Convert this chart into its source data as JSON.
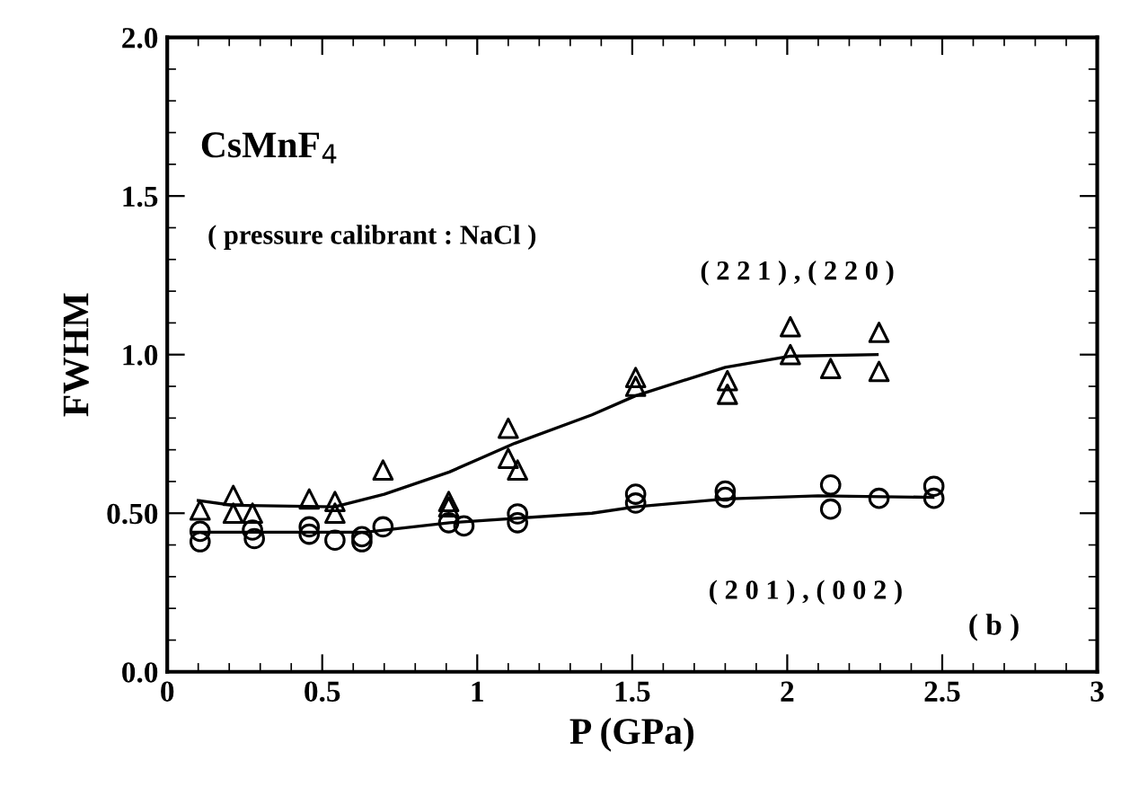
{
  "chart_data": {
    "type": "scatter",
    "xlabel": "P (GPa)",
    "ylabel": "FWHM",
    "annotations": [
      "CsMnF$_{4}$",
      "( pressure calibrant : NaCl )",
      "( b )"
    ],
    "series": [
      {
        "name": "( 2 2 1 ) , ( 2 2 0 )",
        "color": "#000000",
        "marker": "triangle",
        "x": [
          0.106,
          0.213,
          0.213,
          0.275,
          0.458,
          0.541,
          0.541,
          0.696,
          0.908,
          0.908,
          1.1,
          1.1,
          1.13,
          1.511,
          1.511,
          1.807,
          1.807,
          2.01,
          2.01,
          2.14,
          2.296,
          2.296
        ],
        "values": [
          0.51,
          0.556,
          0.5,
          0.5,
          0.545,
          0.537,
          0.5,
          0.636,
          0.537,
          0.52,
          0.768,
          0.673,
          0.636,
          0.928,
          0.9,
          0.918,
          0.875,
          1.088,
          1.0,
          0.956,
          1.07,
          0.947
        ]
      },
      {
        "name": "( 2 0 1 ) , ( 0 0 2 )",
        "color": "#000000",
        "marker": "circle",
        "x": [
          0.106,
          0.106,
          0.275,
          0.281,
          0.458,
          0.458,
          0.541,
          0.628,
          0.628,
          0.696,
          0.908,
          0.957,
          1.13,
          1.13,
          1.511,
          1.511,
          1.8,
          1.8,
          2.14,
          2.14,
          2.296,
          2.473,
          2.473
        ],
        "values": [
          0.443,
          0.41,
          0.447,
          0.42,
          0.457,
          0.434,
          0.415,
          0.426,
          0.41,
          0.457,
          0.47,
          0.46,
          0.498,
          0.47,
          0.56,
          0.532,
          0.57,
          0.55,
          0.589,
          0.513,
          0.547,
          0.585,
          0.547
        ]
      },
      {
        "type": "line",
        "color": "#000000",
        "marker": "none",
        "x": [
          0.1,
          0.21,
          0.54,
          0.7,
          0.91,
          1.12,
          1.37,
          1.51,
          1.8,
          2.01,
          2.29
        ],
        "values": [
          0.54,
          0.525,
          0.52,
          0.56,
          0.63,
          0.72,
          0.81,
          0.87,
          0.96,
          0.995,
          1.0
        ]
      },
      {
        "type": "line",
        "color": "#000000",
        "marker": "none",
        "x": [
          0.08,
          0.64,
          0.91,
          1.37,
          1.51,
          1.8,
          2.1,
          2.47
        ],
        "values": [
          0.44,
          0.44,
          0.47,
          0.5,
          0.52,
          0.545,
          0.555,
          0.55
        ]
      }
    ],
    "xlim": [
      0,
      3
    ],
    "xticks": [
      0,
      0.5,
      1,
      1.5,
      2,
      2.5,
      3
    ],
    "ylim": [
      0,
      2
    ],
    "yticks": [
      {
        "value": 0,
        "label": "0.0"
      },
      {
        "value": 0.5,
        "label": "0.50"
      },
      {
        "value": 1,
        "label": "1.0"
      },
      {
        "value": 1.5,
        "label": "1.5"
      },
      {
        "value": 2,
        "label": "2.0"
      }
    ],
    "grid": false,
    "legend": false
  }
}
